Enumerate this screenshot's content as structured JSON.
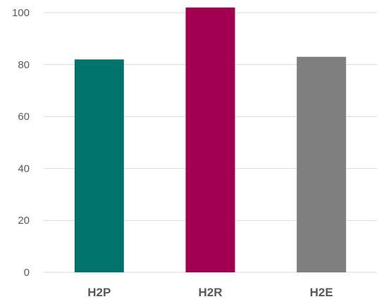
{
  "chart_data": {
    "type": "bar",
    "categories": [
      "H2P",
      "H2R",
      "H2E"
    ],
    "values": [
      82,
      102,
      83
    ],
    "colors": [
      "#00736d",
      "#a20050",
      "#7f7f7f"
    ],
    "ylim": [
      0,
      100
    ],
    "yticks": [
      0,
      20,
      40,
      60,
      80,
      100
    ],
    "grid": true,
    "title": "",
    "xlabel": "",
    "ylabel": ""
  }
}
